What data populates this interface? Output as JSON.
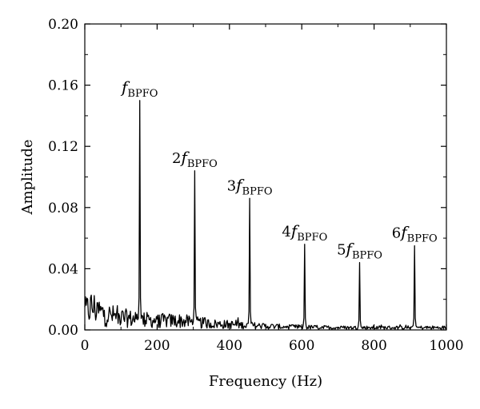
{
  "chart_data": {
    "type": "line",
    "xlabel": "Frequency (Hz)",
    "ylabel": "Amplitude",
    "xlim": [
      0,
      1000
    ],
    "ylim": [
      0,
      0.2
    ],
    "x_ticks": [
      "0",
      "200",
      "400",
      "600",
      "800",
      "1000"
    ],
    "y_ticks": [
      "0.00",
      "0.04",
      "0.08",
      "0.12",
      "0.16",
      "0.20"
    ],
    "grid": false,
    "line_color": "#000000",
    "series": [
      {
        "peaks": [
          {
            "x": 152,
            "y": 0.15
          },
          {
            "x": 304,
            "y": 0.104
          },
          {
            "x": 456,
            "y": 0.086
          },
          {
            "x": 608,
            "y": 0.056
          },
          {
            "x": 760,
            "y": 0.044
          },
          {
            "x": 912,
            "y": 0.055
          }
        ],
        "noise_floor": [
          [
            0,
            0.012
          ],
          [
            20,
            0.015
          ],
          [
            40,
            0.012
          ],
          [
            60,
            0.01
          ],
          [
            100,
            0.008
          ],
          [
            140,
            0.007
          ],
          [
            200,
            0.006
          ],
          [
            260,
            0.006
          ],
          [
            350,
            0.004
          ],
          [
            450,
            0.003
          ],
          [
            550,
            0.002
          ],
          [
            700,
            0.0015
          ],
          [
            850,
            0.0015
          ],
          [
            1000,
            0.0015
          ]
        ]
      }
    ],
    "annotations": [
      {
        "x": 152,
        "y": 0.15,
        "prefix": "",
        "var": "f",
        "sub": "BPFO"
      },
      {
        "x": 304,
        "y": 0.104,
        "prefix": "2",
        "var": "f",
        "sub": "BPFO"
      },
      {
        "x": 456,
        "y": 0.086,
        "prefix": "3",
        "var": "f",
        "sub": "BPFO"
      },
      {
        "x": 608,
        "y": 0.056,
        "prefix": "4",
        "var": "f",
        "sub": "BPFO"
      },
      {
        "x": 760,
        "y": 0.044,
        "prefix": "5",
        "var": "f",
        "sub": "BPFO"
      },
      {
        "x": 912,
        "y": 0.055,
        "prefix": "6",
        "var": "f",
        "sub": "BPFO"
      }
    ]
  }
}
